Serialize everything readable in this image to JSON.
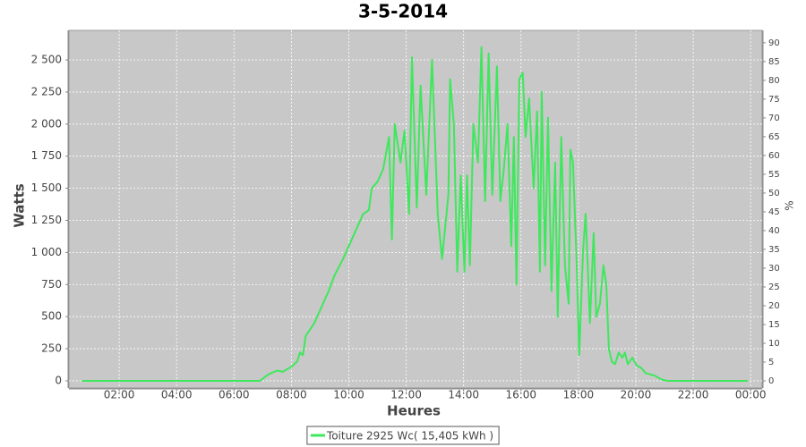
{
  "chart_data": {
    "type": "line",
    "title": "3-5-2014",
    "x_label": "Heures",
    "y_label": "Watts",
    "y2_label": "%",
    "x": [
      0.7,
      3.0,
      6.0,
      6.9,
      7.2,
      7.5,
      7.7,
      8.0,
      8.2,
      8.3,
      8.4,
      8.5,
      8.8,
      9.0,
      9.3,
      9.5,
      9.8,
      10.0,
      10.3,
      10.5,
      10.7,
      10.8,
      11.0,
      11.2,
      11.4,
      11.5,
      11.6,
      11.8,
      11.94,
      12.1,
      12.2,
      12.37,
      12.5,
      12.7,
      12.9,
      13.1,
      13.25,
      13.47,
      13.53,
      13.66,
      13.78,
      13.9,
      14.03,
      14.12,
      14.22,
      14.34,
      14.5,
      14.62,
      14.75,
      14.87,
      15.0,
      15.16,
      15.28,
      15.4,
      15.53,
      15.66,
      15.75,
      15.84,
      15.94,
      16.06,
      16.16,
      16.28,
      16.44,
      16.56,
      16.66,
      16.72,
      16.84,
      16.94,
      17.06,
      17.19,
      17.28,
      17.4,
      17.53,
      17.66,
      17.72,
      17.81,
      17.94,
      18.03,
      18.16,
      18.25,
      18.34,
      18.4,
      18.53,
      18.62,
      18.75,
      18.87,
      18.97,
      19.06,
      19.16,
      19.28,
      19.4,
      19.53,
      19.62,
      19.72,
      19.88,
      20.03,
      20.19,
      20.34,
      20.66,
      20.9,
      21.1,
      23.9
    ],
    "series": [
      {
        "name": "Toiture 2925 Wc( 15,405 kWh )",
        "color": "#3ee85c",
        "values": [
          0,
          0,
          0,
          0,
          50,
          80,
          70,
          110,
          150,
          220,
          200,
          350,
          450,
          550,
          700,
          820,
          950,
          1050,
          1200,
          1300,
          1330,
          1500,
          1550,
          1650,
          1900,
          1100,
          2000,
          1700,
          1950,
          1300,
          2520,
          1350,
          2300,
          1450,
          2500,
          1300,
          950,
          1450,
          2350,
          2000,
          850,
          1600,
          850,
          1600,
          900,
          2000,
          1700,
          2600,
          1400,
          2550,
          1450,
          2450,
          1400,
          1650,
          2000,
          1050,
          1900,
          750,
          2350,
          2400,
          1900,
          2200,
          1500,
          2100,
          850,
          2250,
          900,
          2050,
          700,
          1700,
          500,
          1900,
          900,
          600,
          1800,
          1700,
          900,
          200,
          1000,
          1300,
          800,
          450,
          1150,
          500,
          600,
          900,
          750,
          250,
          150,
          130,
          220,
          180,
          220,
          130,
          180,
          120,
          100,
          60,
          40,
          10,
          0,
          0
        ]
      }
    ],
    "xlim": [
      0.25,
      24.4
    ],
    "xticks": [
      {
        "value": 2,
        "label": "02:00"
      },
      {
        "value": 4,
        "label": "04:00"
      },
      {
        "value": 6,
        "label": "06:00"
      },
      {
        "value": 8,
        "label": "08:00"
      },
      {
        "value": 10,
        "label": "10:00"
      },
      {
        "value": 12,
        "label": "12:00"
      },
      {
        "value": 14,
        "label": "14:00"
      },
      {
        "value": 16,
        "label": "16:00"
      },
      {
        "value": 18,
        "label": "18:00"
      },
      {
        "value": 20,
        "label": "20:00"
      },
      {
        "value": 22,
        "label": "22:00"
      },
      {
        "value": 24,
        "label": "00:00"
      }
    ],
    "ylim": [
      -56,
      2730
    ],
    "yticks": [
      0,
      250,
      500,
      750,
      {
        "value": 1000,
        "label": "1 000"
      },
      {
        "value": 1250,
        "label": "1 250"
      },
      {
        "value": 1500,
        "label": "1 500"
      },
      {
        "value": 1750,
        "label": "1 750"
      },
      {
        "value": 2000,
        "label": "2 000"
      },
      {
        "value": 2250,
        "label": "2 250"
      },
      {
        "value": 2500,
        "label": "2 500"
      }
    ],
    "y2lim": [
      -1.9,
      93.3
    ],
    "y2ticks": [
      0,
      5,
      10,
      15,
      20,
      25,
      30,
      35,
      40,
      45,
      50,
      55,
      60,
      65,
      70,
      75,
      80,
      85,
      90
    ],
    "grid": true,
    "legend": "bottom",
    "plot_background": "#c8c8c8"
  }
}
